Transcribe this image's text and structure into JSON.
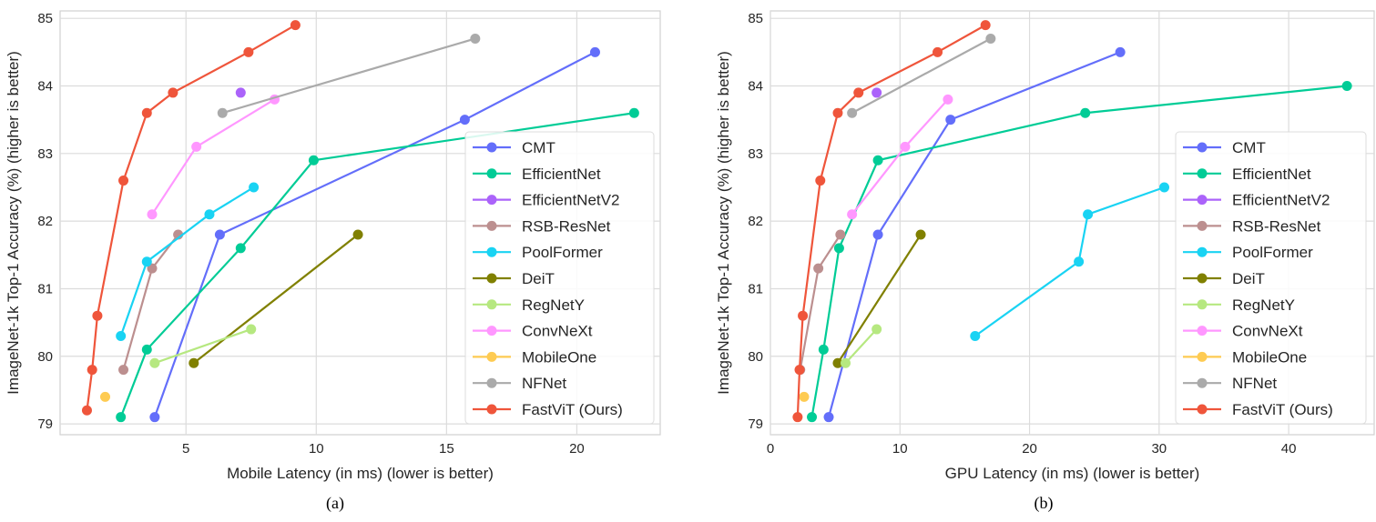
{
  "chart_data": [
    {
      "type": "line",
      "caption": "(a)",
      "xlabel": "Mobile Latency (in ms) (lower is better)",
      "ylabel": "ImageNet-1k Top-1 Accuracy (%) (higher is better)",
      "xlim": [
        0.17,
        23.2
      ],
      "ylim": [
        78.84,
        85.11
      ],
      "xticks": [
        5,
        10,
        15,
        20
      ],
      "yticks": [
        79,
        80,
        81,
        82,
        83,
        84,
        85
      ],
      "grid": true,
      "legend": "center-right",
      "series": [
        {
          "name": "CMT",
          "color": "#636efa",
          "x": [
            3.8,
            6.3,
            15.7,
            20.7
          ],
          "y": [
            79.1,
            81.8,
            83.5,
            84.5
          ]
        },
        {
          "name": "EfficientNet",
          "color": "#00cc96",
          "x": [
            2.5,
            3.5,
            7.1,
            9.9,
            22.2
          ],
          "y": [
            79.1,
            80.1,
            81.6,
            82.9,
            83.6
          ]
        },
        {
          "name": "EfficientNetV2",
          "color": "#ab63fa",
          "x": [
            7.1
          ],
          "y": [
            83.9
          ]
        },
        {
          "name": "RSB-ResNet",
          "color": "#bc8f8f",
          "x": [
            2.6,
            3.7,
            4.7
          ],
          "y": [
            79.8,
            81.3,
            81.8
          ]
        },
        {
          "name": "PoolFormer",
          "color": "#19d3f3",
          "x": [
            2.5,
            3.5,
            5.9,
            7.6
          ],
          "y": [
            80.3,
            81.4,
            82.1,
            82.5
          ]
        },
        {
          "name": "DeiT",
          "color": "#808000",
          "x": [
            5.3,
            11.6
          ],
          "y": [
            79.9,
            81.8
          ]
        },
        {
          "name": "RegNetY",
          "color": "#b6e880",
          "x": [
            3.8,
            7.5
          ],
          "y": [
            79.9,
            80.4
          ]
        },
        {
          "name": "ConvNeXt",
          "color": "#ff97ff",
          "x": [
            3.7,
            5.4,
            8.4
          ],
          "y": [
            82.1,
            83.1,
            83.8
          ]
        },
        {
          "name": "MobileOne",
          "color": "#fecb52",
          "x": [
            1.9
          ],
          "y": [
            79.4
          ]
        },
        {
          "name": "NFNet",
          "color": "#aaaaaa",
          "x": [
            6.4,
            16.1
          ],
          "y": [
            83.6,
            84.7
          ]
        },
        {
          "name": "FastViT (Ours)",
          "color": "#ef553b",
          "x": [
            1.2,
            1.4,
            1.6,
            2.6,
            3.5,
            4.5,
            7.4,
            9.2
          ],
          "y": [
            79.2,
            79.8,
            80.6,
            82.6,
            83.6,
            83.9,
            84.5,
            84.9
          ]
        }
      ]
    },
    {
      "type": "line",
      "caption": "(b)",
      "xlabel": "GPU Latency (in ms) (lower is better)",
      "ylabel": "ImageNet-1k Top-1 Accuracy (%) (higher is better)",
      "xlim": [
        0,
        46.6
      ],
      "ylim": [
        78.84,
        85.11
      ],
      "xticks": [
        0,
        10,
        20,
        30,
        40
      ],
      "yticks": [
        79,
        80,
        81,
        82,
        83,
        84,
        85
      ],
      "grid": true,
      "legend": "lower-right",
      "series": [
        {
          "name": "CMT",
          "color": "#636efa",
          "x": [
            4.5,
            8.3,
            13.9,
            27.0
          ],
          "y": [
            79.1,
            81.8,
            83.5,
            84.5
          ]
        },
        {
          "name": "EfficientNet",
          "color": "#00cc96",
          "x": [
            3.2,
            4.1,
            5.3,
            8.3,
            24.3,
            44.5
          ],
          "y": [
            79.1,
            80.1,
            81.6,
            82.9,
            83.6,
            84.0
          ]
        },
        {
          "name": "EfficientNetV2",
          "color": "#ab63fa",
          "x": [
            8.2
          ],
          "y": [
            83.9
          ]
        },
        {
          "name": "RSB-ResNet",
          "color": "#bc8f8f",
          "x": [
            2.3,
            3.7,
            5.4
          ],
          "y": [
            79.8,
            81.3,
            81.8
          ]
        },
        {
          "name": "PoolFormer",
          "color": "#19d3f3",
          "x": [
            15.8,
            23.8,
            24.5,
            30.4
          ],
          "y": [
            80.3,
            81.4,
            82.1,
            82.5
          ]
        },
        {
          "name": "DeiT",
          "color": "#808000",
          "x": [
            5.2,
            11.6
          ],
          "y": [
            79.9,
            81.8
          ]
        },
        {
          "name": "RegNetY",
          "color": "#b6e880",
          "x": [
            5.8,
            8.2
          ],
          "y": [
            79.9,
            80.4
          ]
        },
        {
          "name": "ConvNeXt",
          "color": "#ff97ff",
          "x": [
            6.3,
            10.4,
            13.7
          ],
          "y": [
            82.1,
            83.1,
            83.8
          ]
        },
        {
          "name": "MobileOne",
          "color": "#fecb52",
          "x": [
            2.6
          ],
          "y": [
            79.4
          ]
        },
        {
          "name": "NFNet",
          "color": "#aaaaaa",
          "x": [
            6.3,
            17.0
          ],
          "y": [
            83.6,
            84.7
          ]
        },
        {
          "name": "FastViT (Ours)",
          "color": "#ef553b",
          "x": [
            2.1,
            2.25,
            2.5,
            3.85,
            5.2,
            6.8,
            12.9,
            16.6
          ],
          "y": [
            79.1,
            79.8,
            80.6,
            82.6,
            83.6,
            83.9,
            84.5,
            84.9
          ]
        }
      ]
    }
  ]
}
